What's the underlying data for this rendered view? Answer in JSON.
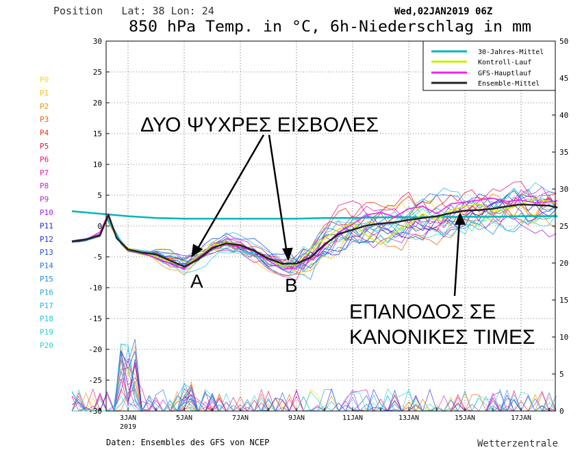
{
  "header": {
    "position": "Position   Lat: 38 Lon: 24",
    "datetime": "Wed,02JAN2019 06Z",
    "title": "850 hPa Temp. in °C, 6h-Niederschlag in mm"
  },
  "footer": {
    "source": "Daten: Ensembles des GFS von NCEP",
    "brand": "Wetterzentrale"
  },
  "colors": {
    "climate": "#00b7b7",
    "control": "#ccee00",
    "gfs": "#ee22ee",
    "mean": "#222222",
    "arrow": "#000000"
  },
  "chart_data": {
    "type": "line",
    "left_axis": {
      "min": -30,
      "max": 30,
      "ticks": [
        -30,
        -25,
        -20,
        -15,
        -10,
        -5,
        0,
        5,
        10,
        15,
        20,
        25,
        30
      ]
    },
    "right_axis": {
      "min": 0,
      "max": 50,
      "ticks": [
        0,
        5,
        10,
        15,
        20,
        25,
        30,
        35,
        40,
        45,
        50
      ]
    },
    "x_labels": [
      {
        "day": 1,
        "label": "3JAN",
        "sub": "2019"
      },
      {
        "day": 3,
        "label": "5JAN",
        "sub": ""
      },
      {
        "day": 5,
        "label": "7JAN",
        "sub": ""
      },
      {
        "day": 7,
        "label": "9JAN",
        "sub": ""
      },
      {
        "day": 9,
        "label": "11JAN",
        "sub": ""
      },
      {
        "day": 11,
        "label": "13JAN",
        "sub": ""
      },
      {
        "day": 13,
        "label": "15JAN",
        "sub": ""
      },
      {
        "day": 15,
        "label": "17JAN",
        "sub": ""
      }
    ],
    "members": [
      {
        "name": "P0",
        "color": "#f0e000"
      },
      {
        "name": "P1",
        "color": "#f0c000"
      },
      {
        "name": "P2",
        "color": "#f09000"
      },
      {
        "name": "P3",
        "color": "#f06000"
      },
      {
        "name": "P4",
        "color": "#e83010"
      },
      {
        "name": "P5",
        "color": "#e81040"
      },
      {
        "name": "P6",
        "color": "#e81080"
      },
      {
        "name": "P7",
        "color": "#e020b0"
      },
      {
        "name": "P8",
        "color": "#d020d0"
      },
      {
        "name": "P9",
        "color": "#c020e0"
      },
      {
        "name": "P10",
        "color": "#a020e0"
      },
      {
        "name": "P11",
        "color": "#2020d0"
      },
      {
        "name": "P12",
        "color": "#2030e0"
      },
      {
        "name": "P13",
        "color": "#2050e8"
      },
      {
        "name": "P14",
        "color": "#2070e8"
      },
      {
        "name": "P15",
        "color": "#2090e8"
      },
      {
        "name": "P16",
        "color": "#20a8e8"
      },
      {
        "name": "P17",
        "color": "#20b8e0"
      },
      {
        "name": "P18",
        "color": "#20c8d8"
      },
      {
        "name": "P19",
        "color": "#20d0d0"
      },
      {
        "name": "P20",
        "color": "#20d8c8"
      }
    ],
    "legend": [
      {
        "label": "30-Jahres-Mittel",
        "key": "climate"
      },
      {
        "label": "Kontroll-Lauf",
        "key": "control"
      },
      {
        "label": "GFS-Hauptlauf",
        "key": "gfs"
      },
      {
        "label": "Ensemble-Mittel",
        "key": "mean"
      }
    ],
    "legend_position": "top-right",
    "series": [
      {
        "name": "30-Jahres-Mittel",
        "key": "climate",
        "x": [
          -1,
          0,
          1,
          2,
          3,
          4,
          5,
          6,
          7,
          8,
          9,
          10,
          11,
          12,
          13,
          14,
          15,
          16,
          16.3
        ],
        "y": [
          2.4,
          2.0,
          1.6,
          1.3,
          1.2,
          1.2,
          1.2,
          1.2,
          1.2,
          1.3,
          1.3,
          1.4,
          1.4,
          1.5,
          1.5,
          1.5,
          1.6,
          1.6,
          1.6
        ]
      },
      {
        "name": "Ensemble-Mittel",
        "key": "mean",
        "x": [
          -1,
          -0.5,
          0,
          0.3,
          0.6,
          1,
          1.5,
          2,
          2.5,
          3,
          3.5,
          4,
          4.5,
          5,
          5.5,
          6,
          6.5,
          7,
          7.5,
          8,
          8.5,
          9,
          9.5,
          10,
          10.5,
          11,
          11.5,
          12,
          12.5,
          13,
          13.5,
          14,
          14.5,
          15,
          15.5,
          16,
          16.3
        ],
        "y": [
          -2.5,
          -2.2,
          -1.5,
          1.8,
          -2.0,
          -3.8,
          -4.3,
          -4.6,
          -5.6,
          -6.6,
          -5.4,
          -3.6,
          -2.8,
          -3.1,
          -4.0,
          -5.3,
          -6.1,
          -6.1,
          -5.1,
          -3.0,
          -1.3,
          -0.6,
          0.1,
          0.4,
          0.6,
          1.0,
          1.3,
          1.6,
          2.1,
          2.5,
          2.6,
          2.8,
          3.2,
          3.5,
          3.4,
          3.3,
          3.0
        ]
      },
      {
        "name": "GFS-Hauptlauf",
        "key": "gfs",
        "x": [
          -1,
          -0.5,
          0,
          0.3,
          0.6,
          1,
          1.5,
          2,
          2.5,
          3,
          3.5,
          4,
          4.5,
          5,
          5.5,
          6,
          6.5,
          7,
          7.3,
          7.6,
          8,
          8.5,
          9,
          9.5,
          10,
          10.5,
          11,
          11.5,
          12,
          12.5,
          13,
          13.5,
          14,
          14.5,
          15,
          15.5,
          16,
          16.3
        ],
        "y": [
          -2.6,
          -2.2,
          -1.0,
          2.0,
          -2.0,
          -3.8,
          -4.4,
          -5.2,
          -6.1,
          -7.0,
          -5.2,
          -3.4,
          -3.0,
          -3.4,
          -4.1,
          -5.6,
          -7.0,
          -6.8,
          -5.0,
          -5.5,
          -3.2,
          -1.0,
          0.3,
          1.8,
          2.2,
          1.5,
          2.8,
          3.2,
          2.0,
          3.6,
          3.9,
          4.2,
          4.5,
          4.0,
          4.2,
          3.8,
          3.9,
          4.1
        ]
      },
      {
        "name": "Kontroll-Lauf",
        "key": "control",
        "x": [
          -1,
          -0.5,
          0,
          0.3,
          0.6,
          1,
          1.5,
          2,
          2.5,
          3,
          3.5,
          4,
          4.5,
          5,
          5.5,
          6,
          6.5,
          7,
          7.5,
          8,
          8.5,
          9,
          9.5,
          10,
          10.5,
          11,
          11.5,
          12,
          12.5,
          13,
          13.5,
          14,
          14.5,
          15,
          15.5,
          16,
          16.3
        ],
        "y": [
          -2.6,
          -2.2,
          -1.5,
          1.7,
          -2.0,
          -3.6,
          -4.2,
          -5.0,
          -5.8,
          -6.6,
          -4.8,
          -3.2,
          -2.6,
          -3.0,
          -4.0,
          -5.2,
          -6.5,
          -6.3,
          -4.0,
          -2.0,
          -0.5,
          0.5,
          -1.5,
          -3.0,
          -1.0,
          0.2,
          2.0,
          1.0,
          2.6,
          3.2,
          3.6,
          2.4,
          2.8,
          3.6,
          4.4,
          4.0,
          3.6
        ]
      }
    ],
    "annotations": [
      {
        "text": "ΔΥΟ ΨΥΧΡΕΣ ΕΙΣΒΟΛΕΣ"
      },
      {
        "text": "A"
      },
      {
        "text": "B"
      },
      {
        "text": "ΕΠΑΝΟΔΟΣ ΣΕ"
      },
      {
        "text": "ΚΑΝΟΝΙΚΕΣ ΤΙΜΕΣ"
      }
    ]
  }
}
